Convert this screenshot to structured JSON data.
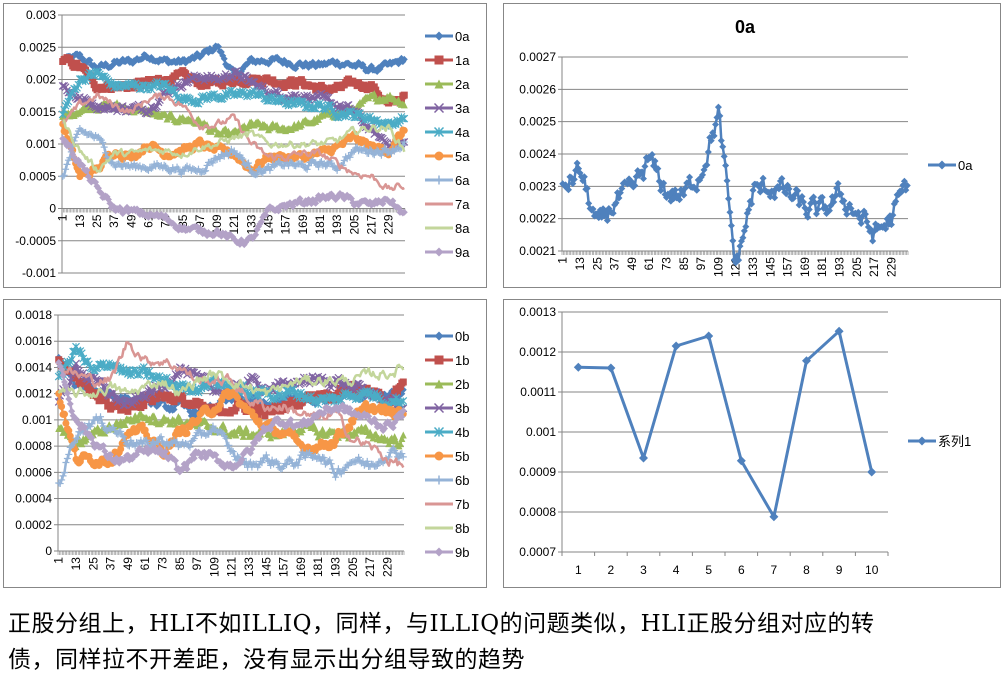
{
  "chart_data": [
    {
      "id": "tl",
      "type": "line",
      "title": "",
      "legend": "right",
      "ylim": [
        -0.001,
        0.003
      ],
      "yticks": [
        "0.003",
        "0.0025",
        "0.002",
        "0.0015",
        "0.001",
        "0.0005",
        "0",
        "-0.0005",
        "-0.001"
      ],
      "n_points": 240,
      "xtick_labels": [
        "1",
        "13",
        "25",
        "37",
        "49",
        "61",
        "73",
        "85",
        "97",
        "109",
        "121",
        "133",
        "145",
        "157",
        "169",
        "181",
        "193",
        "205",
        "217",
        "229"
      ],
      "anchor_x": [
        1,
        13,
        25,
        37,
        49,
        61,
        73,
        85,
        97,
        109,
        121,
        133,
        145,
        157,
        169,
        181,
        193,
        205,
        217,
        229,
        240
      ],
      "series": [
        {
          "name": "0a",
          "color": "#4F81BD",
          "marker": "diamond",
          "values": [
            0.00229,
            0.00235,
            0.00217,
            0.00225,
            0.00228,
            0.00238,
            0.00228,
            0.00227,
            0.00235,
            0.00252,
            0.00205,
            0.00228,
            0.0023,
            0.00228,
            0.00223,
            0.00222,
            0.00227,
            0.00222,
            0.00215,
            0.0022,
            0.00231
          ]
        },
        {
          "name": "1a",
          "color": "#C0504D",
          "marker": "square",
          "values": [
            0.0023,
            0.0022,
            0.0019,
            0.0019,
            0.0019,
            0.00195,
            0.002,
            0.00205,
            0.00195,
            0.00195,
            0.002,
            0.002,
            0.002,
            0.00195,
            0.00195,
            0.00185,
            0.00185,
            0.00195,
            0.0019,
            0.0016,
            0.00175
          ]
        },
        {
          "name": "2a",
          "color": "#9BBB59",
          "marker": "triangle",
          "values": [
            0.0014,
            0.00155,
            0.0016,
            0.0016,
            0.00155,
            0.0015,
            0.0014,
            0.0014,
            0.00135,
            0.00115,
            0.00115,
            0.0013,
            0.00125,
            0.00125,
            0.0013,
            0.0014,
            0.0015,
            0.00155,
            0.0017,
            0.00175,
            0.00165
          ]
        },
        {
          "name": "3a",
          "color": "#8064A2",
          "marker": "x",
          "values": [
            0.0019,
            0.0017,
            0.0016,
            0.00155,
            0.00155,
            0.00155,
            0.0018,
            0.00195,
            0.00205,
            0.002,
            0.0021,
            0.00195,
            0.0018,
            0.00175,
            0.00175,
            0.0017,
            0.0016,
            0.0015,
            0.0012,
            0.001,
            0.001
          ]
        },
        {
          "name": "4a",
          "color": "#4BACC6",
          "marker": "star",
          "values": [
            0.0015,
            0.002,
            0.0021,
            0.0019,
            0.0019,
            0.0019,
            0.0019,
            0.0017,
            0.0017,
            0.00175,
            0.00175,
            0.0018,
            0.0017,
            0.00165,
            0.0016,
            0.0016,
            0.0015,
            0.00145,
            0.0014,
            0.0013,
            0.0014
          ]
        },
        {
          "name": "5a",
          "color": "#F79646",
          "marker": "circle",
          "values": [
            0.0013,
            0.0005,
            0.0006,
            0.0009,
            0.0008,
            0.001,
            0.00085,
            0.0009,
            0.001,
            0.0009,
            0.00085,
            0.0006,
            0.0008,
            0.0008,
            0.0008,
            0.00085,
            0.00095,
            0.0011,
            0.00095,
            0.0009,
            0.0012
          ]
        },
        {
          "name": "6a",
          "color": "#95B3D7",
          "marker": "plus",
          "values": [
            0.0005,
            0.0012,
            0.0011,
            0.0007,
            0.00065,
            0.00065,
            0.00065,
            0.0006,
            0.0006,
            0.0008,
            0.0009,
            0.0006,
            0.0006,
            0.0007,
            0.00065,
            0.0007,
            0.00065,
            0.0009,
            0.0009,
            0.0009,
            0.001
          ]
        },
        {
          "name": "7a",
          "color": "#D99694",
          "marker": "dash",
          "values": [
            0.0013,
            0.0016,
            0.00175,
            0.0016,
            0.0015,
            0.0017,
            0.00175,
            0.0016,
            0.0013,
            0.0013,
            0.0014,
            0.001,
            0.0008,
            0.0008,
            0.00085,
            0.00085,
            0.0007,
            0.00055,
            0.0005,
            0.0003,
            0.00035
          ]
        },
        {
          "name": "8a",
          "color": "#C3D69B",
          "marker": "dash",
          "values": [
            0.00135,
            0.0009,
            0.0006,
            0.00085,
            0.00085,
            0.0009,
            0.0009,
            0.00085,
            0.00095,
            0.001,
            0.0011,
            0.00115,
            0.001,
            0.001,
            0.001,
            0.001,
            0.00105,
            0.0012,
            0.00125,
            0.00125,
            0.0009
          ]
        },
        {
          "name": "9a",
          "color": "#B3A2C7",
          "marker": "diamond",
          "values": [
            0.0011,
            0.0007,
            0.0003,
            0.0,
            -5e-05,
            -0.0001,
            -0.00015,
            -0.0003,
            -0.00035,
            -0.00035,
            -0.0005,
            -0.0005,
            -5e-05,
            5e-05,
            0.0001,
            0.00015,
            0.0002,
            0.0001,
            5e-05,
            0.00015,
            -0.0001
          ]
        }
      ]
    },
    {
      "id": "tr",
      "type": "line",
      "title": "0a",
      "legend": "right",
      "ylim": [
        0.0021,
        0.0027
      ],
      "yticks": [
        "0.0027",
        "0.0026",
        "0.0025",
        "0.0024",
        "0.0023",
        "0.0022",
        "0.0021"
      ],
      "n_points": 240,
      "xtick_labels": [
        "1",
        "13",
        "25",
        "37",
        "49",
        "61",
        "73",
        "85",
        "97",
        "109",
        "121",
        "133",
        "145",
        "157",
        "169",
        "181",
        "193",
        "205",
        "217",
        "229"
      ],
      "anchor_x": [
        1,
        13,
        25,
        37,
        49,
        61,
        73,
        85,
        97,
        109,
        121,
        133,
        145,
        157,
        169,
        181,
        193,
        205,
        217,
        229,
        240
      ],
      "series": [
        {
          "name": "0a",
          "color": "#4F81BD",
          "marker": "diamond",
          "values": [
            0.00229,
            0.00235,
            0.00217,
            0.00225,
            0.00228,
            0.00238,
            0.00228,
            0.00227,
            0.00235,
            0.00252,
            0.00205,
            0.00228,
            0.0023,
            0.00228,
            0.00223,
            0.00222,
            0.00227,
            0.00222,
            0.00215,
            0.0022,
            0.00231
          ]
        }
      ]
    },
    {
      "id": "bl",
      "type": "line",
      "title": "",
      "legend": "right",
      "ylim": [
        0,
        0.0018
      ],
      "yticks": [
        "0.0018",
        "0.0016",
        "0.0014",
        "0.0012",
        "0.001",
        "0.0008",
        "0.0006",
        "0.0004",
        "0.0002",
        "0"
      ],
      "n_points": 240,
      "xtick_labels": [
        "1",
        "13",
        "25",
        "37",
        "49",
        "61",
        "73",
        "85",
        "97",
        "109",
        "121",
        "133",
        "145",
        "157",
        "169",
        "181",
        "193",
        "205",
        "217",
        "229"
      ],
      "anchor_x": [
        1,
        13,
        25,
        37,
        49,
        61,
        73,
        85,
        97,
        109,
        121,
        133,
        145,
        157,
        169,
        181,
        193,
        205,
        217,
        229,
        240
      ],
      "series": [
        {
          "name": "0b",
          "color": "#4F81BD",
          "marker": "diamond",
          "values": [
            0.00145,
            0.00125,
            0.00125,
            0.0012,
            0.00115,
            0.00115,
            0.0011,
            0.0011,
            0.00105,
            0.0011,
            0.00115,
            0.00115,
            0.0011,
            0.00115,
            0.00115,
            0.00115,
            0.0012,
            0.0012,
            0.0012,
            0.0012,
            0.0012
          ]
        },
        {
          "name": "1b",
          "color": "#C0504D",
          "marker": "square",
          "values": [
            0.00148,
            0.0013,
            0.0012,
            0.0011,
            0.0011,
            0.00115,
            0.0012,
            0.00115,
            0.0011,
            0.00105,
            0.0011,
            0.0011,
            0.00105,
            0.0011,
            0.00115,
            0.0012,
            0.0012,
            0.00125,
            0.0012,
            0.00115,
            0.00125
          ]
        },
        {
          "name": "2b",
          "color": "#9BBB59",
          "marker": "triangle",
          "values": [
            0.00095,
            0.0008,
            0.0009,
            0.00095,
            0.001,
            0.00105,
            0.001,
            0.001,
            0.00095,
            0.00095,
            0.0009,
            0.0009,
            0.0009,
            0.0009,
            0.00095,
            0.0009,
            0.0009,
            0.0009,
            0.0009,
            0.00085,
            0.00085
          ]
        },
        {
          "name": "3b",
          "color": "#8064A2",
          "marker": "x",
          "values": [
            0.00115,
            0.0014,
            0.0013,
            0.0012,
            0.0011,
            0.0012,
            0.00125,
            0.0014,
            0.0013,
            0.00125,
            0.0012,
            0.0013,
            0.00125,
            0.00125,
            0.0013,
            0.0013,
            0.0013,
            0.00125,
            0.0012,
            0.00115,
            0.0011
          ]
        },
        {
          "name": "4b",
          "color": "#4BACC6",
          "marker": "star",
          "values": [
            0.0013,
            0.00155,
            0.00135,
            0.00145,
            0.00135,
            0.00135,
            0.0013,
            0.00125,
            0.00125,
            0.0013,
            0.00125,
            0.0012,
            0.0012,
            0.0012,
            0.0012,
            0.00115,
            0.00115,
            0.0012,
            0.0012,
            0.00115,
            0.00115
          ]
        },
        {
          "name": "5b",
          "color": "#F79646",
          "marker": "circle",
          "values": [
            0.0012,
            0.0007,
            0.0007,
            0.0007,
            0.0009,
            0.0009,
            0.00075,
            0.0009,
            0.001,
            0.0011,
            0.0012,
            0.00105,
            0.00095,
            0.0009,
            0.0008,
            0.0008,
            0.00085,
            0.001,
            0.0011,
            0.00105,
            0.00105
          ]
        },
        {
          "name": "6b",
          "color": "#95B3D7",
          "marker": "plus",
          "values": [
            0.0005,
            0.0009,
            0.001,
            0.00095,
            0.00085,
            0.0008,
            0.00085,
            0.0008,
            0.00085,
            0.00095,
            0.00075,
            0.00065,
            0.0007,
            0.00065,
            0.0007,
            0.00075,
            0.0006,
            0.0007,
            0.00065,
            0.00075,
            0.00075
          ]
        },
        {
          "name": "7b",
          "color": "#D99694",
          "marker": "dash",
          "values": [
            0.0014,
            0.00135,
            0.0013,
            0.0013,
            0.0016,
            0.00145,
            0.00145,
            0.0014,
            0.0013,
            0.0013,
            0.0013,
            0.00115,
            0.0011,
            0.0011,
            0.00105,
            0.001,
            0.00105,
            0.00085,
            0.0008,
            0.0007,
            0.00065
          ]
        },
        {
          "name": "8b",
          "color": "#C3D69B",
          "marker": "dash",
          "values": [
            0.0012,
            0.0012,
            0.0012,
            0.00125,
            0.0012,
            0.00125,
            0.0013,
            0.0012,
            0.0013,
            0.00135,
            0.0013,
            0.00125,
            0.0012,
            0.00125,
            0.0013,
            0.0013,
            0.0013,
            0.0013,
            0.00135,
            0.00135,
            0.0014
          ]
        },
        {
          "name": "9b",
          "color": "#B3A2C7",
          "marker": "diamond",
          "values": [
            0.00145,
            0.001,
            0.00085,
            0.0007,
            0.0007,
            0.00075,
            0.00075,
            0.0006,
            0.00075,
            0.0007,
            0.00065,
            0.00075,
            0.00095,
            0.001,
            0.00095,
            0.00105,
            0.0011,
            0.00105,
            0.001,
            0.00095,
            0.00105
          ]
        }
      ]
    },
    {
      "id": "br",
      "type": "line",
      "title": "",
      "legend": "right",
      "ylim": [
        0.0007,
        0.0013
      ],
      "yticks": [
        "0.0013",
        "0.0012",
        "0.0011",
        "0.001",
        "0.0009",
        "0.0008",
        "0.0007"
      ],
      "categories": [
        "1",
        "2",
        "3",
        "4",
        "5",
        "6",
        "7",
        "8",
        "9",
        "10"
      ],
      "series": [
        {
          "name": "系列1",
          "color": "#4F81BD",
          "marker": "diamond",
          "values": [
            0.001162,
            0.00116,
            0.000935,
            0.001215,
            0.00124,
            0.000928,
            0.000788,
            0.001178,
            0.001252,
            0.0009
          ]
        }
      ]
    }
  ],
  "caption": {
    "line1": "正股分组上，HLI不如ILLIQ，同样，与ILLIQ的问题类似，HLI正股分组对应的转",
    "line2": "债，同样拉不开差距，没有显示出分组导致的趋势"
  }
}
